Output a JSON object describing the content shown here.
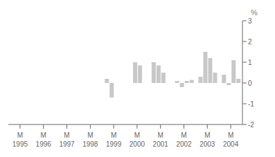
{
  "chart_data": {
    "type": "bar",
    "y_label": "%",
    "categories": [
      "1995",
      "1996",
      "1997",
      "1998",
      "1999",
      "2000",
      "2001",
      "2002",
      "2003",
      "2004"
    ],
    "series": [
      {
        "color": "#c8c8c8",
        "values": [
          null,
          null,
          null,
          null,
          0.2,
          null,
          1.0,
          0.1,
          0.3,
          0.4
        ]
      },
      {
        "color": "#c8c8c8",
        "values": [
          null,
          null,
          null,
          null,
          -0.7,
          1.0,
          0.85,
          -0.2,
          1.5,
          -0.1
        ]
      },
      {
        "color": "#c8c8c8",
        "values": [
          null,
          null,
          null,
          null,
          null,
          0.85,
          0.5,
          0.1,
          1.2,
          1.1
        ]
      },
      {
        "color": "#c8c8c8",
        "values": [
          null,
          null,
          null,
          null,
          null,
          null,
          null,
          0.15,
          0.5,
          0.2
        ]
      }
    ],
    "annotations": [
      {
        "x": "1995",
        "text": "M"
      },
      {
        "x": "1996",
        "text": "M"
      },
      {
        "x": "1997",
        "text": "M"
      },
      {
        "x": "1998",
        "text": "M"
      },
      {
        "x": "1999",
        "text": "M"
      },
      {
        "x": "2000",
        "text": "M"
      },
      {
        "x": "2001",
        "text": "M"
      },
      {
        "x": "2002",
        "text": "M"
      },
      {
        "x": "2003",
        "text": "M"
      },
      {
        "x": "2004",
        "text": "M"
      }
    ],
    "ylim": [
      -2,
      3
    ],
    "yticks": [
      -2,
      -1,
      0,
      1,
      2,
      3
    ],
    "grid": false
  }
}
